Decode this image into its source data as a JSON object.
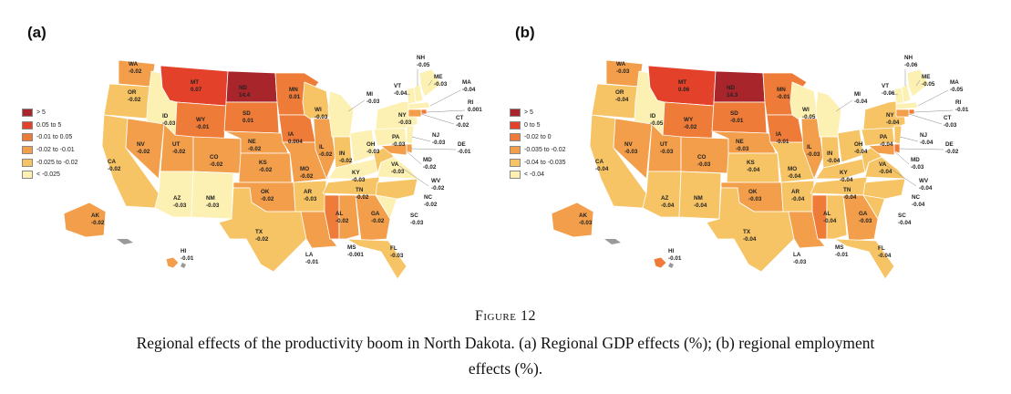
{
  "figure": {
    "title": "Figure 12",
    "caption_line1": "Regional effects of the productivity boom in North Dakota. (a) Regional GDP effects (%); (b) regional employment",
    "caption_line2": "effects (%)."
  },
  "panels": [
    {
      "label": "(a)",
      "legend": [
        {
          "label": "> 5",
          "color": "#a8262b"
        },
        {
          "label": "0.05 to 5",
          "color": "#e3412a"
        },
        {
          "label": "-0.01 to 0.05",
          "color": "#ee7c38"
        },
        {
          "label": "-0.02 to -0.01",
          "color": "#f29e4a"
        },
        {
          "label": "-0.025 to -0.02",
          "color": "#f7c465"
        },
        {
          "label": "< -0.025",
          "color": "#fcf0b2"
        }
      ],
      "states": {
        "WA": {
          "label": "WA",
          "value": "-0.02"
        },
        "OR": {
          "label": "OR",
          "value": "-0.02"
        },
        "CA": {
          "label": "CA",
          "value": "-0.02"
        },
        "ID": {
          "label": "ID",
          "value": "-0.03"
        },
        "NV": {
          "label": "NV",
          "value": "-0.02"
        },
        "MT": {
          "label": "MT",
          "value": "0.07"
        },
        "WY": {
          "label": "WY",
          "value": "-0.01"
        },
        "UT": {
          "label": "UT",
          "value": "-0.02"
        },
        "AZ": {
          "label": "AZ",
          "value": "-0.03"
        },
        "CO": {
          "label": "CO",
          "value": "-0.02"
        },
        "NM": {
          "label": "NM",
          "value": "-0.03"
        },
        "ND": {
          "label": "ND",
          "value": "14.4"
        },
        "SD": {
          "label": "SD",
          "value": "0.01"
        },
        "NE": {
          "label": "NE",
          "value": "-0.02"
        },
        "KS": {
          "label": "KS",
          "value": "-0.02"
        },
        "OK": {
          "label": "OK",
          "value": "-0.02"
        },
        "TX": {
          "label": "TX",
          "value": "-0.02"
        },
        "MN": {
          "label": "MN",
          "value": "0.01"
        },
        "IA": {
          "label": "IA",
          "value": "0.004"
        },
        "MO": {
          "label": "MO",
          "value": "-0.02"
        },
        "AR": {
          "label": "AR",
          "value": "-0.03"
        },
        "LA": {
          "label": "LA",
          "value": "-0.01"
        },
        "WI": {
          "label": "WI",
          "value": "-0.03"
        },
        "IL": {
          "label": "IL",
          "value": "-0.02"
        },
        "MI": {
          "label": "MI",
          "value": "-0.03"
        },
        "IN": {
          "label": "IN",
          "value": "-0.02"
        },
        "OH": {
          "label": "OH",
          "value": "-0.03"
        },
        "KY": {
          "label": "KY",
          "value": "-0.03"
        },
        "TN": {
          "label": "TN",
          "value": "-0.02"
        },
        "MS": {
          "label": "MS",
          "value": "-0.001"
        },
        "AL": {
          "label": "AL",
          "value": "-0.02"
        },
        "GA": {
          "label": "GA",
          "value": "-0.02"
        },
        "FL": {
          "label": "FL",
          "value": "-0.03"
        },
        "SC": {
          "label": "SC",
          "value": "-0.03"
        },
        "NC": {
          "label": "NC",
          "value": "-0.02"
        },
        "VA": {
          "label": "VA",
          "value": "-0.03"
        },
        "WV": {
          "label": "WV",
          "value": "-0.02"
        },
        "PA": {
          "label": "PA",
          "value": "-0.03"
        },
        "NY": {
          "label": "NY",
          "value": "-0.03"
        },
        "VT": {
          "label": "VT",
          "value": "-0.04"
        },
        "NH": {
          "label": "NH",
          "value": "-0.05"
        },
        "ME": {
          "label": "ME",
          "value": "-0.03"
        },
        "MA": {
          "label": "MA",
          "value": "-0.04"
        },
        "RI": {
          "label": "RI",
          "value": "0.001"
        },
        "CT": {
          "label": "CT",
          "value": "-0.02"
        },
        "NJ": {
          "label": "NJ",
          "value": "-0.03"
        },
        "DE": {
          "label": "DE",
          "value": "-0.01"
        },
        "MD": {
          "label": "MD",
          "value": "-0.02"
        },
        "AK": {
          "label": "AK",
          "value": "-0.02"
        },
        "HI": {
          "label": "HI",
          "value": "-0.01"
        }
      },
      "colors": {
        "WA": "#f29e4a",
        "OR": "#f7c465",
        "CA": "#f7c465",
        "ID": "#fcf0b2",
        "NV": "#f29e4a",
        "MT": "#e3412a",
        "WY": "#ee7c38",
        "UT": "#f29e4a",
        "AZ": "#fcf0b2",
        "CO": "#f29e4a",
        "NM": "#fcf0b2",
        "ND": "#a8262b",
        "SD": "#ee7c38",
        "NE": "#f29e4a",
        "KS": "#f29e4a",
        "OK": "#f29e4a",
        "TX": "#f7c465",
        "MN": "#ee7c38",
        "IA": "#ee7c38",
        "MO": "#f29e4a",
        "AR": "#f7c465",
        "LA": "#f29e4a",
        "WI": "#f7c465",
        "IL": "#f29e4a",
        "MI": "#fcf0b2",
        "IN": "#f7c465",
        "OH": "#fcf0b2",
        "KY": "#fcf0b2",
        "TN": "#f7c465",
        "MS": "#ee7c38",
        "AL": "#f29e4a",
        "GA": "#f29e4a",
        "FL": "#f7c465",
        "SC": "#fcf0b2",
        "NC": "#f7c465",
        "VA": "#fcf0b2",
        "WV": "#f7c465",
        "PA": "#fcf0b2",
        "NY": "#fcf0b2",
        "VT": "#fcf0b2",
        "NH": "#fcf0b2",
        "ME": "#fcf0b2",
        "MA": "#fcf0b2",
        "RI": "#ee7c38",
        "CT": "#f29e4a",
        "NJ": "#fcf0b2",
        "DE": "#f29e4a",
        "MD": "#f29e4a",
        "AK": "#f29e4a",
        "HI": "#f29e4a"
      }
    },
    {
      "label": "(b)",
      "legend": [
        {
          "label": "> 5",
          "color": "#a8262b"
        },
        {
          "label": "0 to 5",
          "color": "#e3412a"
        },
        {
          "label": "-0.02 to 0",
          "color": "#ee7c38"
        },
        {
          "label": "-0.035 to -0.02",
          "color": "#f29e4a"
        },
        {
          "label": "-0.04 to -0.035",
          "color": "#f7c465"
        },
        {
          "label": "< -0.04",
          "color": "#fcf0b2"
        }
      ],
      "states": {
        "WA": {
          "label": "WA",
          "value": "-0.03"
        },
        "OR": {
          "label": "OR",
          "value": "-0.04"
        },
        "CA": {
          "label": "CA",
          "value": "-0.04"
        },
        "ID": {
          "label": "ID",
          "value": "-0.05"
        },
        "NV": {
          "label": "NV",
          "value": "-0.03"
        },
        "MT": {
          "label": "MT",
          "value": "0.06"
        },
        "WY": {
          "label": "WY",
          "value": "-0.02"
        },
        "UT": {
          "label": "UT",
          "value": "-0.03"
        },
        "AZ": {
          "label": "AZ",
          "value": "-0.04"
        },
        "CO": {
          "label": "CO",
          "value": "-0.03"
        },
        "NM": {
          "label": "NM",
          "value": "-0.04"
        },
        "ND": {
          "label": "ND",
          "value": "14.3"
        },
        "SD": {
          "label": "SD",
          "value": "-0.01"
        },
        "NE": {
          "label": "NE",
          "value": "-0.03"
        },
        "KS": {
          "label": "KS",
          "value": "-0.04"
        },
        "OK": {
          "label": "OK",
          "value": "-0.03"
        },
        "TX": {
          "label": "TX",
          "value": "-0.04"
        },
        "MN": {
          "label": "MN",
          "value": "-0.01"
        },
        "IA": {
          "label": "IA",
          "value": "-0.01"
        },
        "MO": {
          "label": "MO",
          "value": "-0.04"
        },
        "AR": {
          "label": "AR",
          "value": "-0.04"
        },
        "LA": {
          "label": "LA",
          "value": "-0.03"
        },
        "WI": {
          "label": "WI",
          "value": "-0.05"
        },
        "IL": {
          "label": "IL",
          "value": "-0.03"
        },
        "MI": {
          "label": "MI",
          "value": "-0.04"
        },
        "IN": {
          "label": "IN",
          "value": "-0.04"
        },
        "OH": {
          "label": "OH",
          "value": "-0.04"
        },
        "KY": {
          "label": "KY",
          "value": "-0.04"
        },
        "TN": {
          "label": "TN",
          "value": "-0.04"
        },
        "MS": {
          "label": "MS",
          "value": "-0.01"
        },
        "AL": {
          "label": "AL",
          "value": "-0.04"
        },
        "GA": {
          "label": "GA",
          "value": "-0.03"
        },
        "FL": {
          "label": "FL",
          "value": "-0.04"
        },
        "SC": {
          "label": "SC",
          "value": "-0.04"
        },
        "NC": {
          "label": "NC",
          "value": "-0.04"
        },
        "VA": {
          "label": "VA",
          "value": "-0.04"
        },
        "WV": {
          "label": "WV",
          "value": "-0.04"
        },
        "PA": {
          "label": "PA",
          "value": "-0.04"
        },
        "NY": {
          "label": "NY",
          "value": "-0.04"
        },
        "VT": {
          "label": "VT",
          "value": "-0.06"
        },
        "NH": {
          "label": "NH",
          "value": "-0.06"
        },
        "ME": {
          "label": "ME",
          "value": "-0.05"
        },
        "MA": {
          "label": "MA",
          "value": "-0.05"
        },
        "RI": {
          "label": "RI",
          "value": "-0.01"
        },
        "CT": {
          "label": "CT",
          "value": "-0.03"
        },
        "NJ": {
          "label": "NJ",
          "value": "-0.04"
        },
        "DE": {
          "label": "DE",
          "value": "-0.02"
        },
        "MD": {
          "label": "MD",
          "value": "-0.03"
        },
        "AK": {
          "label": "AK",
          "value": "-0.03"
        },
        "HI": {
          "label": "HI",
          "value": "-0.01"
        }
      },
      "colors": {
        "WA": "#f29e4a",
        "OR": "#f7c465",
        "CA": "#f7c465",
        "ID": "#fcf0b2",
        "NV": "#f29e4a",
        "MT": "#e3412a",
        "WY": "#ee7c38",
        "UT": "#f29e4a",
        "AZ": "#f7c465",
        "CO": "#f29e4a",
        "NM": "#f7c465",
        "ND": "#a8262b",
        "SD": "#ee7c38",
        "NE": "#f29e4a",
        "KS": "#f7c465",
        "OK": "#f29e4a",
        "TX": "#f7c465",
        "MN": "#ee7c38",
        "IA": "#ee7c38",
        "MO": "#f7c465",
        "AR": "#f7c465",
        "LA": "#f29e4a",
        "WI": "#fcf0b2",
        "IL": "#f29e4a",
        "MI": "#fcf0b2",
        "IN": "#f7c465",
        "OH": "#f7c465",
        "KY": "#f7c465",
        "TN": "#f7c465",
        "MS": "#ee7c38",
        "AL": "#f7c465",
        "GA": "#f29e4a",
        "FL": "#f7c465",
        "SC": "#f7c465",
        "NC": "#f7c465",
        "VA": "#f7c465",
        "WV": "#f7c465",
        "PA": "#f7c465",
        "NY": "#f7c465",
        "VT": "#fcf0b2",
        "NH": "#fcf0b2",
        "ME": "#fcf0b2",
        "MA": "#fcf0b2",
        "RI": "#ee7c38",
        "CT": "#f29e4a",
        "NJ": "#f7c465",
        "DE": "#ee7c38",
        "MD": "#f29e4a",
        "AK": "#f29e4a",
        "HI": "#ee7c38"
      }
    }
  ]
}
